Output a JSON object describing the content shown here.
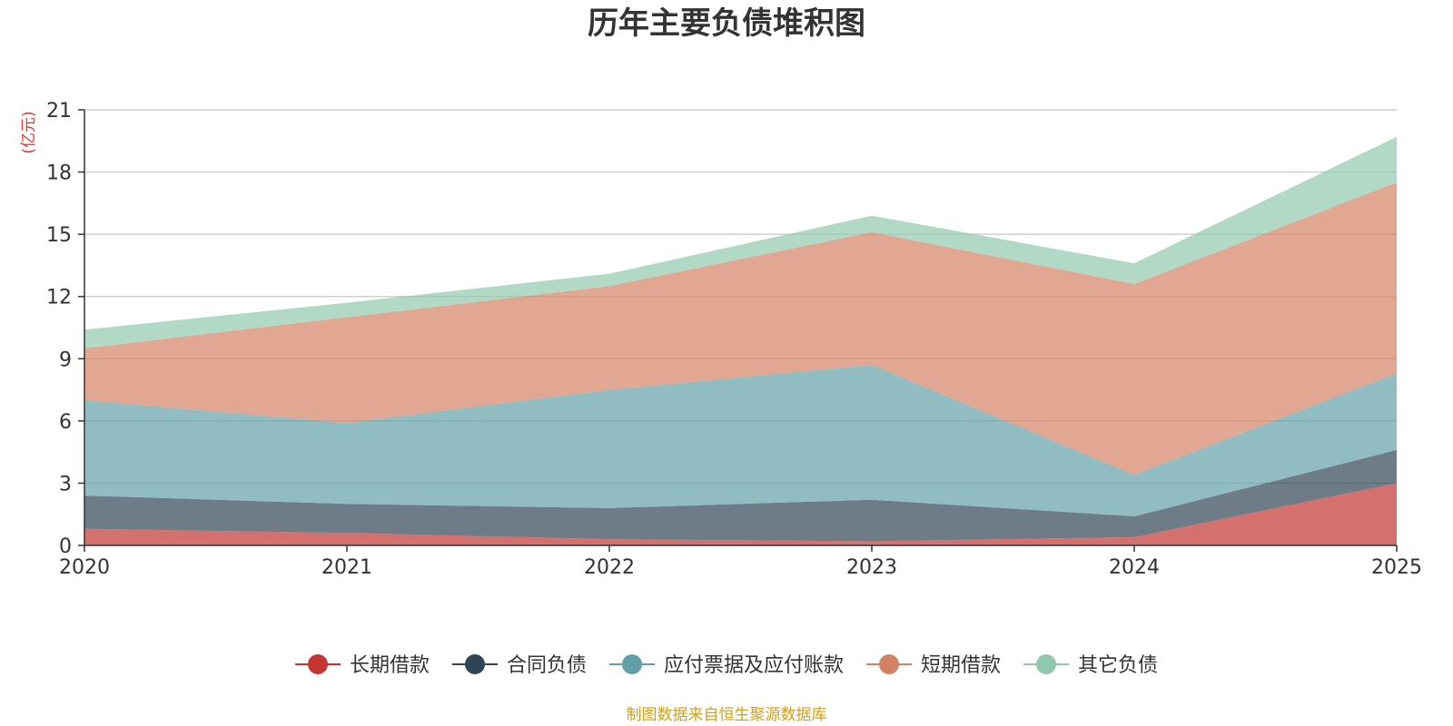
{
  "chart_data": {
    "type": "area",
    "stacked": true,
    "title": "历年主要负债堆积图",
    "ylabel": "(亿元)",
    "x": [
      "2020",
      "2021",
      "2022",
      "2023",
      "2024",
      "2025"
    ],
    "ylim": [
      0,
      21
    ],
    "yticks": [
      0,
      3,
      6,
      9,
      12,
      15,
      18,
      21
    ],
    "grid": true,
    "legend_position": "bottom",
    "series": [
      {
        "name": "长期借款",
        "color": "#c23531",
        "values": [
          0.8,
          0.6,
          0.3,
          0.2,
          0.4,
          3.0
        ]
      },
      {
        "name": "合同负债",
        "color": "#2f4554",
        "values": [
          1.6,
          1.4,
          1.5,
          2.0,
          1.0,
          1.6
        ]
      },
      {
        "name": "应付票据及应付账款",
        "color": "#61a0a8",
        "values": [
          4.6,
          3.9,
          5.7,
          6.5,
          2.0,
          3.7
        ]
      },
      {
        "name": "短期借款",
        "color": "#d48265",
        "values": [
          2.5,
          5.1,
          5.0,
          6.4,
          9.2,
          9.2
        ]
      },
      {
        "name": "其它负债",
        "color": "#91c7ae",
        "values": [
          0.9,
          0.7,
          0.6,
          0.8,
          1.0,
          2.2
        ]
      }
    ],
    "unit_color": "#e8322f"
  },
  "footer": {
    "source_text": "制图数据来自恒生聚源数据库",
    "source_color": "#d4a017"
  }
}
